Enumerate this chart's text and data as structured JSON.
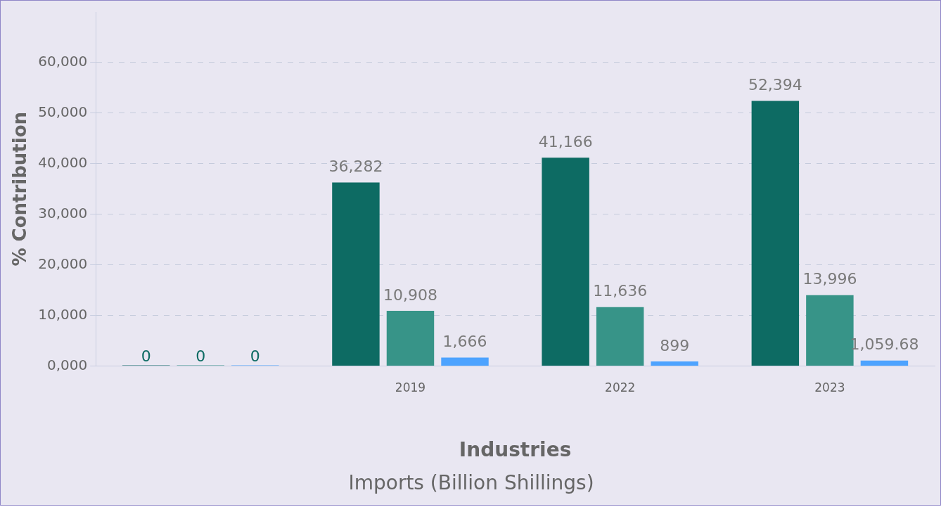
{
  "chart_data": {
    "type": "bar",
    "title": "Imports (Billion Shillings)",
    "xlabel": "Industries",
    "ylabel": "% Contribution",
    "categories": [
      null,
      "2019",
      "2022",
      "2023"
    ],
    "series": [
      {
        "color": "#0d6b63",
        "values": [
          0,
          36282,
          41166,
          52394
        ],
        "value_labels": [
          "0",
          "36,282",
          "41,166",
          "52,394"
        ]
      },
      {
        "color": "#379488",
        "values": [
          0,
          10908,
          11636,
          13996
        ],
        "value_labels": [
          "0",
          "10,908",
          "11,636",
          "13,996"
        ]
      },
      {
        "color": "#4da3ff",
        "values": [
          0,
          1666,
          899,
          1059.68
        ],
        "value_labels": [
          "0",
          "1,666",
          "899",
          "1,059.68"
        ]
      }
    ],
    "ylim": [
      0,
      70000
    ],
    "yticks": [
      {
        "value": 0,
        "label": "0,000"
      },
      {
        "value": 10000,
        "label": "10,000"
      },
      {
        "value": 20000,
        "label": "20,000"
      },
      {
        "value": 30000,
        "label": "30,000"
      },
      {
        "value": 40000,
        "label": "40,000"
      },
      {
        "value": 50000,
        "label": "50,000"
      },
      {
        "value": 60000,
        "label": "60,000"
      }
    ],
    "grid": "y",
    "legend": false
  }
}
